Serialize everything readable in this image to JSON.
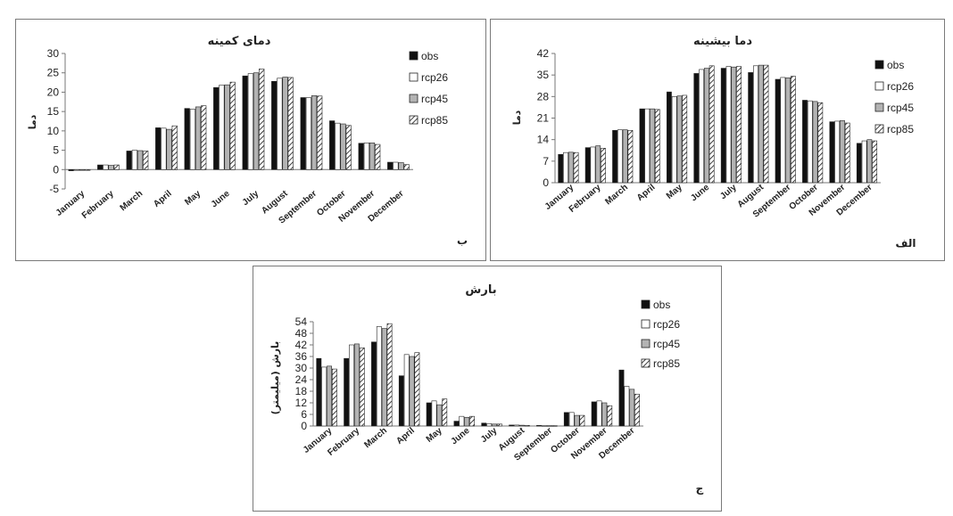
{
  "series_colors": {
    "obs": "#111111",
    "rcp26": "#ffffff",
    "rcp45": "#b3b3b3",
    "rcp85": "hatch"
  },
  "chart_data": [
    {
      "id": "tmin",
      "type": "bar",
      "title": "دمای کمینه",
      "ylabel": "دما",
      "panel_tag": "ب",
      "ylim": [
        -5,
        30
      ],
      "yticks": [
        -5,
        0,
        5,
        10,
        15,
        20,
        25,
        30
      ],
      "categories": [
        "January",
        "February",
        "March",
        "April",
        "May",
        "June",
        "July",
        "August",
        "September",
        "October",
        "November",
        "December"
      ],
      "series": [
        {
          "name": "obs",
          "values": [
            -0.3,
            1.2,
            4.8,
            10.8,
            15.8,
            21.2,
            24.2,
            22.8,
            18.6,
            12.6,
            6.8,
            1.9
          ]
        },
        {
          "name": "rcp26",
          "values": [
            -0.2,
            1.2,
            5.0,
            10.7,
            15.6,
            21.8,
            24.8,
            23.6,
            18.6,
            12.0,
            6.9,
            1.9
          ]
        },
        {
          "name": "rcp45",
          "values": [
            -0.2,
            1.1,
            4.9,
            10.4,
            16.2,
            21.9,
            25.0,
            23.9,
            19.1,
            11.8,
            6.9,
            1.8
          ]
        },
        {
          "name": "rcp85",
          "values": [
            -0.2,
            1.2,
            4.8,
            11.3,
            16.5,
            22.6,
            26.0,
            23.8,
            19.0,
            11.4,
            6.5,
            1.3
          ]
        }
      ]
    },
    {
      "id": "tmax",
      "type": "bar",
      "title": "دما بیشینه",
      "ylabel": "دما",
      "panel_tag": "الف",
      "ylim": [
        0,
        42
      ],
      "yticks": [
        0,
        7,
        14,
        21,
        28,
        35,
        42
      ],
      "categories": [
        "January",
        "February",
        "March",
        "April",
        "May",
        "June",
        "July",
        "August",
        "September",
        "October",
        "November",
        "December"
      ],
      "series": [
        {
          "name": "obs",
          "values": [
            9.2,
            11.4,
            17.0,
            24.0,
            29.5,
            35.5,
            37.2,
            35.8,
            33.6,
            26.8,
            19.8,
            12.8
          ]
        },
        {
          "name": "rcp26",
          "values": [
            9.8,
            11.6,
            17.2,
            24.0,
            28.0,
            36.8,
            37.8,
            38.0,
            34.2,
            26.6,
            20.0,
            13.6
          ]
        },
        {
          "name": "rcp45",
          "values": [
            9.9,
            12.0,
            17.2,
            24.0,
            28.2,
            37.2,
            37.6,
            38.2,
            34.1,
            26.4,
            20.2,
            14.0
          ]
        },
        {
          "name": "rcp85",
          "values": [
            9.8,
            11.2,
            17.0,
            23.8,
            28.4,
            38.0,
            37.8,
            38.2,
            34.6,
            26.0,
            19.4,
            13.6
          ]
        }
      ]
    },
    {
      "id": "prcp",
      "type": "bar",
      "title": "بارش",
      "ylabel": "بارش (میلیمتر)",
      "panel_tag": "ج",
      "ylim": [
        0,
        54
      ],
      "yticks": [
        0,
        6,
        12,
        18,
        24,
        30,
        36,
        42,
        48,
        54
      ],
      "categories": [
        "January",
        "February",
        "March",
        "April",
        "May",
        "June",
        "July",
        "August",
        "September",
        "October",
        "November",
        "December"
      ],
      "series": [
        {
          "name": "obs",
          "values": [
            35.0,
            35.0,
            43.5,
            26.0,
            12.0,
            2.5,
            1.5,
            0.5,
            0.3,
            7.0,
            12.5,
            29.0
          ]
        },
        {
          "name": "rcp26",
          "values": [
            30.5,
            42.0,
            51.5,
            37.0,
            13.0,
            5.0,
            1.2,
            0.5,
            0.2,
            7.0,
            13.0,
            20.5
          ]
        },
        {
          "name": "rcp45",
          "values": [
            31.0,
            42.5,
            50.5,
            36.0,
            11.0,
            4.5,
            1.0,
            0.4,
            0.2,
            5.5,
            12.0,
            19.0
          ]
        },
        {
          "name": "rcp85",
          "values": [
            29.5,
            40.5,
            53.0,
            38.0,
            14.0,
            5.0,
            1.0,
            0.3,
            0.2,
            5.5,
            10.5,
            16.5
          ]
        }
      ]
    }
  ]
}
